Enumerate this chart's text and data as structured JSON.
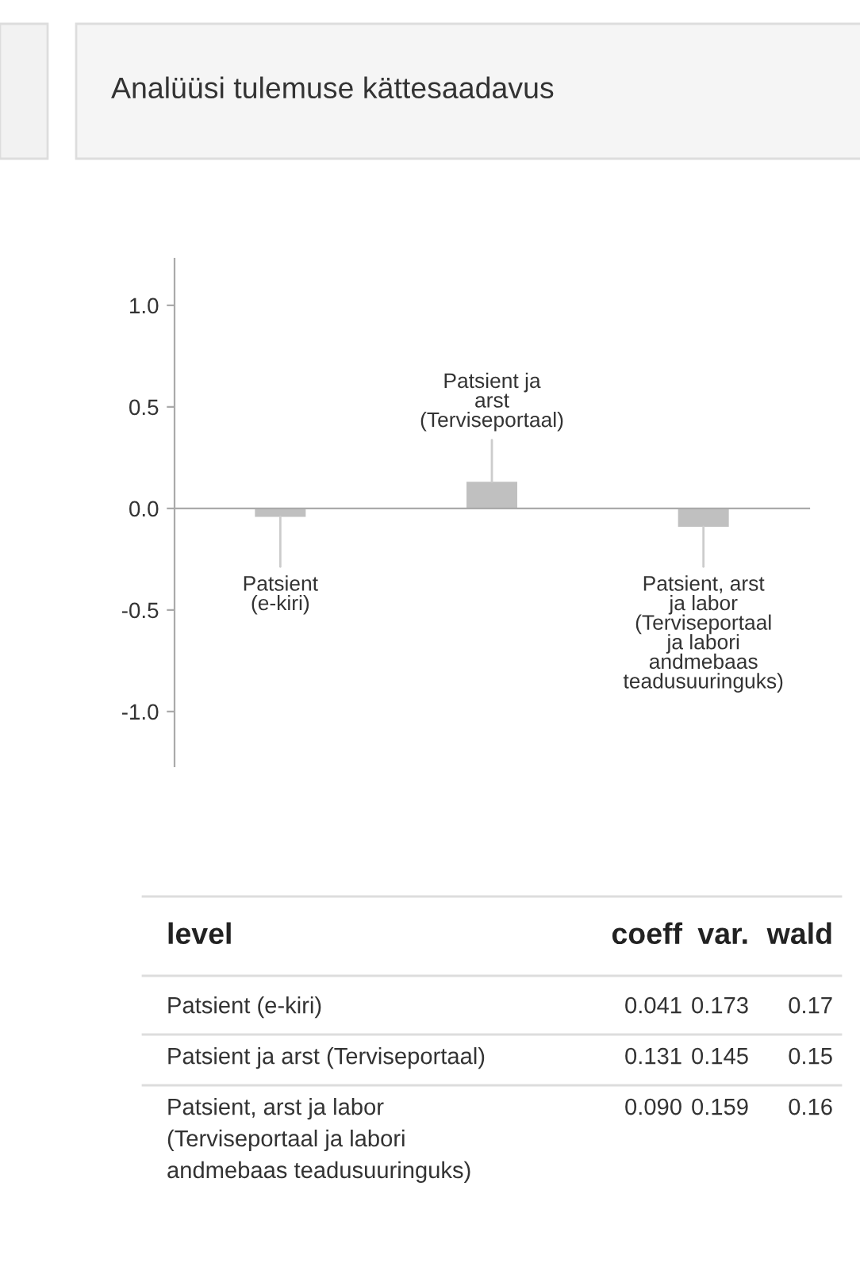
{
  "chart_data": {
    "type": "bar",
    "title": "Analüüsi tulemuse kättesaadavus",
    "categories": [
      "Patsient\n(e-kiri)",
      "Patsient ja\narst\n(Terviseportaal)",
      "Patsient, arst\nja labor\n(Terviseportaal\nja labori\nandmebaas\nteadusuuringuks)"
    ],
    "values": [
      -0.041,
      0.131,
      -0.09
    ],
    "color": "#c0c0c0",
    "ylim": [
      -1.27,
      1.23
    ],
    "yticks": [
      {
        "value": 1.0,
        "label": "1.0"
      },
      {
        "value": 0.5,
        "label": "0.5"
      },
      {
        "value": 0.0,
        "label": "0.0"
      },
      {
        "value": -0.5,
        "label": "-0.5"
      },
      {
        "value": -1.0,
        "label": "-1.0"
      }
    ],
    "annotations": [
      "level",
      "coeff",
      "var.",
      "wald",
      "Patsient (e-kiri)",
      "0.041",
      "0.173",
      "0.17",
      "Patsient ja arst (Terviseportaal)",
      "0.131",
      "0.145",
      "0.15",
      "Patsient, arst ja labor\n(Terviseportaal ja labori\nandmebaas teadusuuringuks)",
      "0.090",
      "0.159",
      "0.16"
    ]
  }
}
